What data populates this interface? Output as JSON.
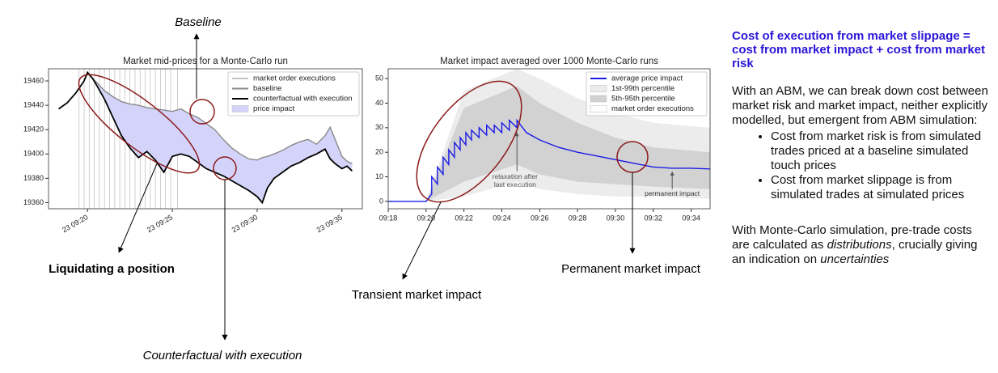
{
  "chart_data": [
    {
      "type": "line",
      "title": "Market mid-prices for a Monte-Carlo run",
      "x": [
        18.3,
        18.8,
        19.3,
        19.8,
        20.0,
        20.3,
        20.6,
        21,
        21.5,
        22,
        22.5,
        23,
        23.5,
        24,
        24.5,
        25,
        25.5,
        26,
        26.5,
        27,
        27.5,
        28,
        28.5,
        29,
        29.5,
        30,
        30.3,
        30.6,
        31,
        31.5,
        32,
        32.5,
        33,
        33.5,
        34,
        34.3,
        34.6,
        35,
        35.3,
        35.6
      ],
      "series": [
        {
          "name": "baseline",
          "color": "#8a8a8a",
          "values": [
            null,
            null,
            null,
            null,
            19467,
            19462,
            19458,
            19452,
            19447,
            19443,
            19441,
            19440,
            19438,
            19437,
            19436,
            19435,
            19437,
            19433,
            19430,
            19425,
            19420,
            19412,
            19405,
            19400,
            19396,
            19395,
            19397,
            19398,
            19400,
            19403,
            19407,
            19410,
            19412,
            19408,
            19415,
            19422,
            19412,
            19398,
            19394,
            19392
          ]
        },
        {
          "name": "counterfactual with execution",
          "color": "#000000",
          "values": [
            19437,
            19442,
            19450,
            19460,
            19467,
            19462,
            19455,
            19445,
            19430,
            19415,
            19405,
            19397,
            19402,
            19395,
            19385,
            19398,
            19400,
            19398,
            19393,
            19388,
            19385,
            19382,
            19378,
            19374,
            19370,
            19365,
            19360,
            19372,
            19380,
            19385,
            19390,
            19393,
            19397,
            19400,
            19404,
            19396,
            19392,
            19388,
            19390,
            19386
          ]
        }
      ],
      "fill": {
        "name": "price impact",
        "color": "#d4d4fa"
      },
      "executions": {
        "name": "market order executions",
        "color": "#c4c4c4",
        "x": [
          19.5,
          19.8,
          20.1,
          20.4,
          20.7,
          21,
          21.3,
          21.6,
          21.9,
          22.2,
          22.5,
          22.8,
          23.1,
          23.4,
          23.7,
          24,
          24.3,
          24.6,
          24.9,
          25.3
        ]
      },
      "xlim": [
        17.7,
        36.2
      ],
      "ylim": [
        19355,
        19470
      ],
      "xticks": [
        {
          "value": 20,
          "label": "23 09:20"
        },
        {
          "value": 25,
          "label": "23 09:25"
        },
        {
          "value": 30,
          "label": "23 09:30"
        },
        {
          "value": 35,
          "label": "23 09:35"
        }
      ],
      "yticks": [
        19360,
        19380,
        19400,
        19420,
        19440,
        19460
      ]
    },
    {
      "type": "line",
      "title": "Market impact averaged over 1000 Monte-Carlo runs",
      "x": [
        18,
        20,
        20.3,
        20.3,
        20.6,
        20.6,
        20.9,
        20.9,
        21.2,
        21.2,
        21.5,
        21.5,
        21.8,
        21.8,
        22.1,
        22.1,
        22.4,
        22.4,
        22.8,
        22.8,
        23.2,
        23.2,
        23.6,
        23.6,
        24,
        24,
        24.4,
        24.4,
        24.8,
        24.8,
        25.3,
        26,
        27,
        28,
        29,
        30,
        31,
        32,
        33,
        34,
        35
      ],
      "series": [
        {
          "name": "average price impact",
          "color": "#1a1ae6",
          "values": [
            0,
            0,
            3,
            10,
            7,
            14,
            11,
            18,
            15,
            21,
            18,
            24,
            21,
            26,
            23,
            28,
            25,
            29,
            26,
            30,
            27,
            31,
            28,
            31,
            28,
            32,
            29,
            33,
            30,
            33,
            28,
            25,
            22,
            20,
            18.5,
            17,
            15.5,
            14,
            13.5,
            13.5,
            13.2
          ]
        }
      ],
      "bands": [
        {
          "name": "1st-99th percentile",
          "color": "#ececec",
          "x": [
            18,
            20,
            22,
            24.8,
            26,
            28,
            30,
            32,
            35
          ],
          "lower": [
            0,
            0,
            2,
            8,
            5,
            3,
            2,
            2,
            1
          ],
          "upper": [
            0,
            0,
            45,
            54,
            50,
            42,
            36,
            32,
            30
          ]
        },
        {
          "name": "5th-95th percentile",
          "color": "#d2d2d2",
          "x": [
            18,
            20,
            22,
            24.8,
            26,
            28,
            30,
            32,
            35
          ],
          "lower": [
            0,
            0,
            8,
            15,
            11,
            8,
            7,
            6,
            5
          ],
          "upper": [
            0,
            0,
            38,
            47,
            40,
            32,
            26,
            22,
            20
          ]
        }
      ],
      "executions": {
        "name": "market order executions",
        "color": "#ffffff"
      },
      "annotations": [
        "relaxation after",
        "last execution",
        "permanent impact"
      ],
      "xlim": [
        18,
        35
      ],
      "ylim": [
        -3,
        54
      ],
      "xticks": [
        {
          "value": 18,
          "label": "09:18"
        },
        {
          "value": 20,
          "label": "09:20"
        },
        {
          "value": 22,
          "label": "09:22"
        },
        {
          "value": 24,
          "label": "09:24"
        },
        {
          "value": 26,
          "label": "09:26"
        },
        {
          "value": 28,
          "label": "09:28"
        },
        {
          "value": 30,
          "label": "09:30"
        },
        {
          "value": 32,
          "label": "09:32"
        },
        {
          "value": 34,
          "label": "09:34"
        }
      ],
      "yticks": [
        0,
        10,
        20,
        30,
        40,
        50
      ]
    }
  ],
  "annotations": [
    "Baseline",
    "Liquidating a position",
    "Counterfactual with execution",
    "Transient market impact",
    "Permanent market impact"
  ],
  "sidebar": {
    "heading": "Cost of execution from market slippage = cost from market impact + cost from market risk",
    "intro": "With an ABM, we can break down cost between market risk and market impact, neither explicitly modelled, but emergent from ABM simulation:",
    "bullets": [
      "Cost from market risk is from simulated trades priced at a baseline simulated touch prices",
      "Cost from market slippage is from simulated trades at simulated prices"
    ],
    "closing": [
      "With Monte-Carlo simulation, pre-trade costs are calculated as ",
      "distributions",
      ", crucially giving an indication on ",
      "uncertainties"
    ]
  }
}
